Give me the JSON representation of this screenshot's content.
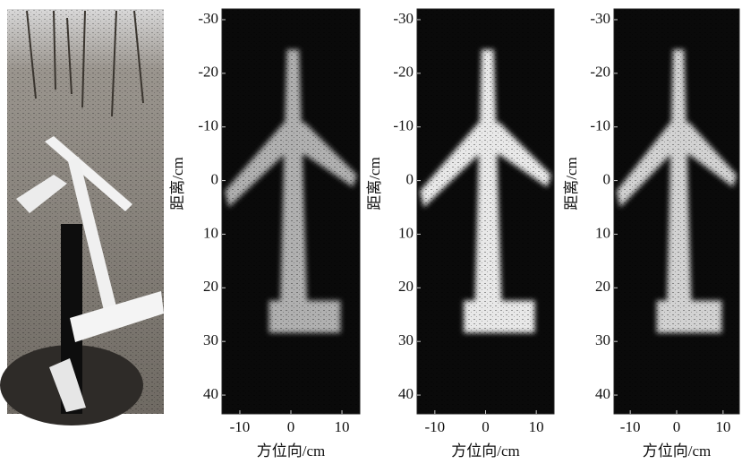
{
  "chart_data": [
    {
      "type": "image",
      "x_label": "方位向/cm",
      "y_label": "距离/cm",
      "xlim": [
        -13.5,
        13.5
      ],
      "ylim": [
        -32,
        43.5
      ],
      "xticks": [
        -10,
        0,
        10
      ],
      "yticks": [
        -30,
        -20,
        -10,
        0,
        10,
        20,
        30,
        40
      ]
    },
    {
      "type": "image",
      "x_label": "方位向/cm",
      "y_label": "距离/cm",
      "xlim": [
        -13.5,
        13.5
      ],
      "ylim": [
        -32,
        43.5
      ],
      "xticks": [
        -10,
        0,
        10
      ],
      "yticks": [
        -30,
        -20,
        -10,
        0,
        10,
        20,
        30,
        40
      ]
    },
    {
      "type": "image",
      "x_label": "方位向/cm",
      "y_label": "距离/cm",
      "xlim": [
        -13.5,
        13.5
      ],
      "ylim": [
        -32,
        43.5
      ],
      "xticks": [
        -10,
        0,
        10
      ],
      "yticks": [
        -30,
        -20,
        -10,
        0,
        10,
        20,
        30,
        40
      ]
    }
  ]
}
